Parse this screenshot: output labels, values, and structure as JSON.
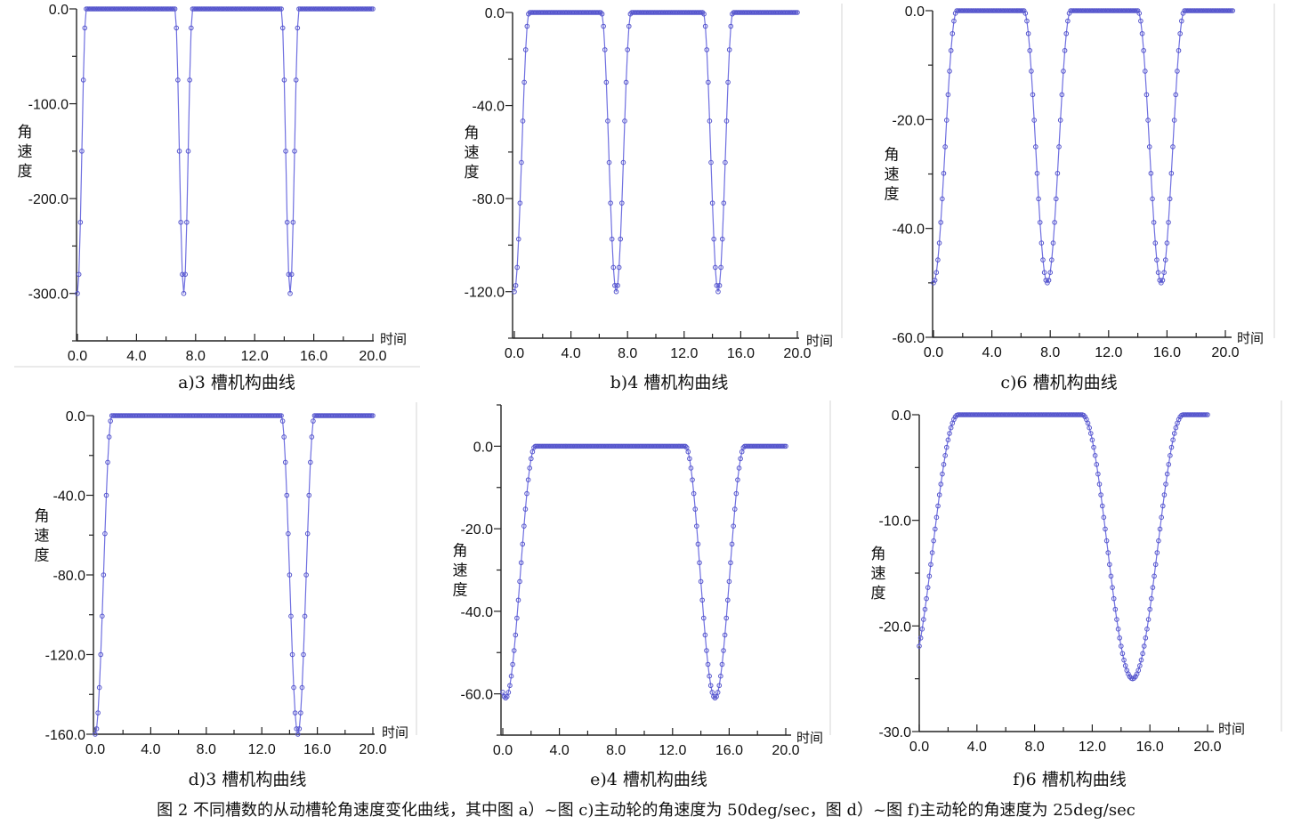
{
  "figure_caption": "图 2 不同槽数的从动槽轮角速度变化曲线，其中图 a）~图 c)主动轮的角速度为 50deg/sec，图 d）~图 f)主动轮的角速度为 25deg/sec",
  "chart_data": [
    {
      "type": "line",
      "caption": "a)3 槽机构曲线",
      "xlabel": "时间",
      "ylabel": "角速度",
      "xlim": [
        0,
        20
      ],
      "ylim": [
        -350,
        0
      ],
      "xticks": [
        "0.0",
        "4.0",
        "8.0",
        "12.0",
        "16.0",
        "20.0"
      ],
      "yticks": [
        {
          "value": 0,
          "label": "0.0"
        },
        {
          "value": -100,
          "label": "-100.0"
        },
        {
          "value": -200,
          "label": "-200.0"
        },
        {
          "value": -300,
          "label": "-300.0"
        }
      ],
      "slots": 3,
      "peak": -300,
      "half_width": 0.6,
      "centers": [
        0.0,
        7.2,
        14.4
      ],
      "x_end": 20.0,
      "series_color": "#6f6fe0"
    },
    {
      "type": "line",
      "caption": "b)4 槽机构曲线",
      "xlabel": "时间",
      "ylabel": "角速度",
      "xlim": [
        0,
        20
      ],
      "ylim": [
        -140,
        0
      ],
      "xticks": [
        "0.0",
        "4.0",
        "8.0",
        "12.0",
        "16.0",
        "20.0"
      ],
      "yticks": [
        {
          "value": 0,
          "label": "0.0"
        },
        {
          "value": -40,
          "label": "-40.0"
        },
        {
          "value": -80,
          "label": "-80.0"
        },
        {
          "value": -120,
          "label": "-120.0"
        }
      ],
      "slots": 4,
      "peak": -120,
      "half_width": 1.05,
      "centers": [
        0.0,
        7.2,
        14.4
      ],
      "x_end": 20.0,
      "series_color": "#6f6fe0"
    },
    {
      "type": "line",
      "caption": "c)6 槽机构曲线",
      "xlabel": "时间",
      "ylabel": "角速度",
      "xlim": [
        0,
        20
      ],
      "ylim": [
        -60,
        0
      ],
      "xticks": [
        "0.0",
        "4.0",
        "8.0",
        "12.0",
        "16.0",
        "20.0"
      ],
      "yticks": [
        {
          "value": 0,
          "label": "0.0"
        },
        {
          "value": -20,
          "label": "-20.0"
        },
        {
          "value": -40,
          "label": "-40.0"
        },
        {
          "value": -60,
          "label": "-60.0"
        }
      ],
      "slots": 6,
      "peak": -50,
      "half_width": 1.6,
      "centers": [
        0.0,
        7.8,
        15.6
      ],
      "x_end": 20.5,
      "series_color": "#6f6fe0"
    },
    {
      "type": "line",
      "caption": "d)3 槽机构曲线",
      "xlabel": "时间",
      "ylabel": "角速度",
      "xlim": [
        0,
        20
      ],
      "ylim": [
        -160,
        0
      ],
      "xticks": [
        "0.0",
        "4.0",
        "8.0",
        "12.0",
        "16.0",
        "20.0"
      ],
      "yticks": [
        {
          "value": 0,
          "label": "0.0"
        },
        {
          "value": -40,
          "label": "-40.0"
        },
        {
          "value": -80,
          "label": "-80.0"
        },
        {
          "value": -120,
          "label": "-120.0"
        },
        {
          "value": -160,
          "label": "-160.0"
        }
      ],
      "slots": 3,
      "peak": -160,
      "half_width": 1.2,
      "centers": [
        0.0,
        14.6
      ],
      "x_end": 20.0,
      "series_color": "#6f6fe0"
    },
    {
      "type": "line",
      "caption": "e)4 槽机构曲线",
      "xlabel": "时间",
      "ylabel": "角速度",
      "xlim": [
        0,
        20
      ],
      "ylim": [
        -70,
        10
      ],
      "xticks": [
        "0.0",
        "4.0",
        "8.0",
        "12.0",
        "16.0",
        "20.0"
      ],
      "yticks": [
        {
          "value": 0,
          "label": "0.0"
        },
        {
          "value": -20,
          "label": "-20.0"
        },
        {
          "value": -40,
          "label": "-40.0"
        },
        {
          "value": -60,
          "label": "-60.0"
        }
      ],
      "slots": 4,
      "peak": -61,
      "half_width": 2.1,
      "centers": [
        0.2,
        15.0
      ],
      "x_end": 20.0,
      "series_color": "#6f6fe0"
    },
    {
      "type": "line",
      "caption": "f)6 槽机构曲线",
      "xlabel": "时间",
      "ylabel": "角速度",
      "xlim": [
        0,
        20
      ],
      "ylim": [
        -30,
        0
      ],
      "xticks": [
        "0.0",
        "4.0",
        "8.0",
        "12.0",
        "16.0",
        "20.0"
      ],
      "yticks": [
        {
          "value": 0,
          "label": "0.0"
        },
        {
          "value": -10,
          "label": "-10.0"
        },
        {
          "value": -20,
          "label": "-20.0"
        },
        {
          "value": -30,
          "label": "-30.0"
        }
      ],
      "slots": 6,
      "peak": -25,
      "half_width": 3.5,
      "centers": [
        -0.8,
        14.8
      ],
      "x_end": 20.0,
      "series_color": "#6f6fe0"
    }
  ]
}
